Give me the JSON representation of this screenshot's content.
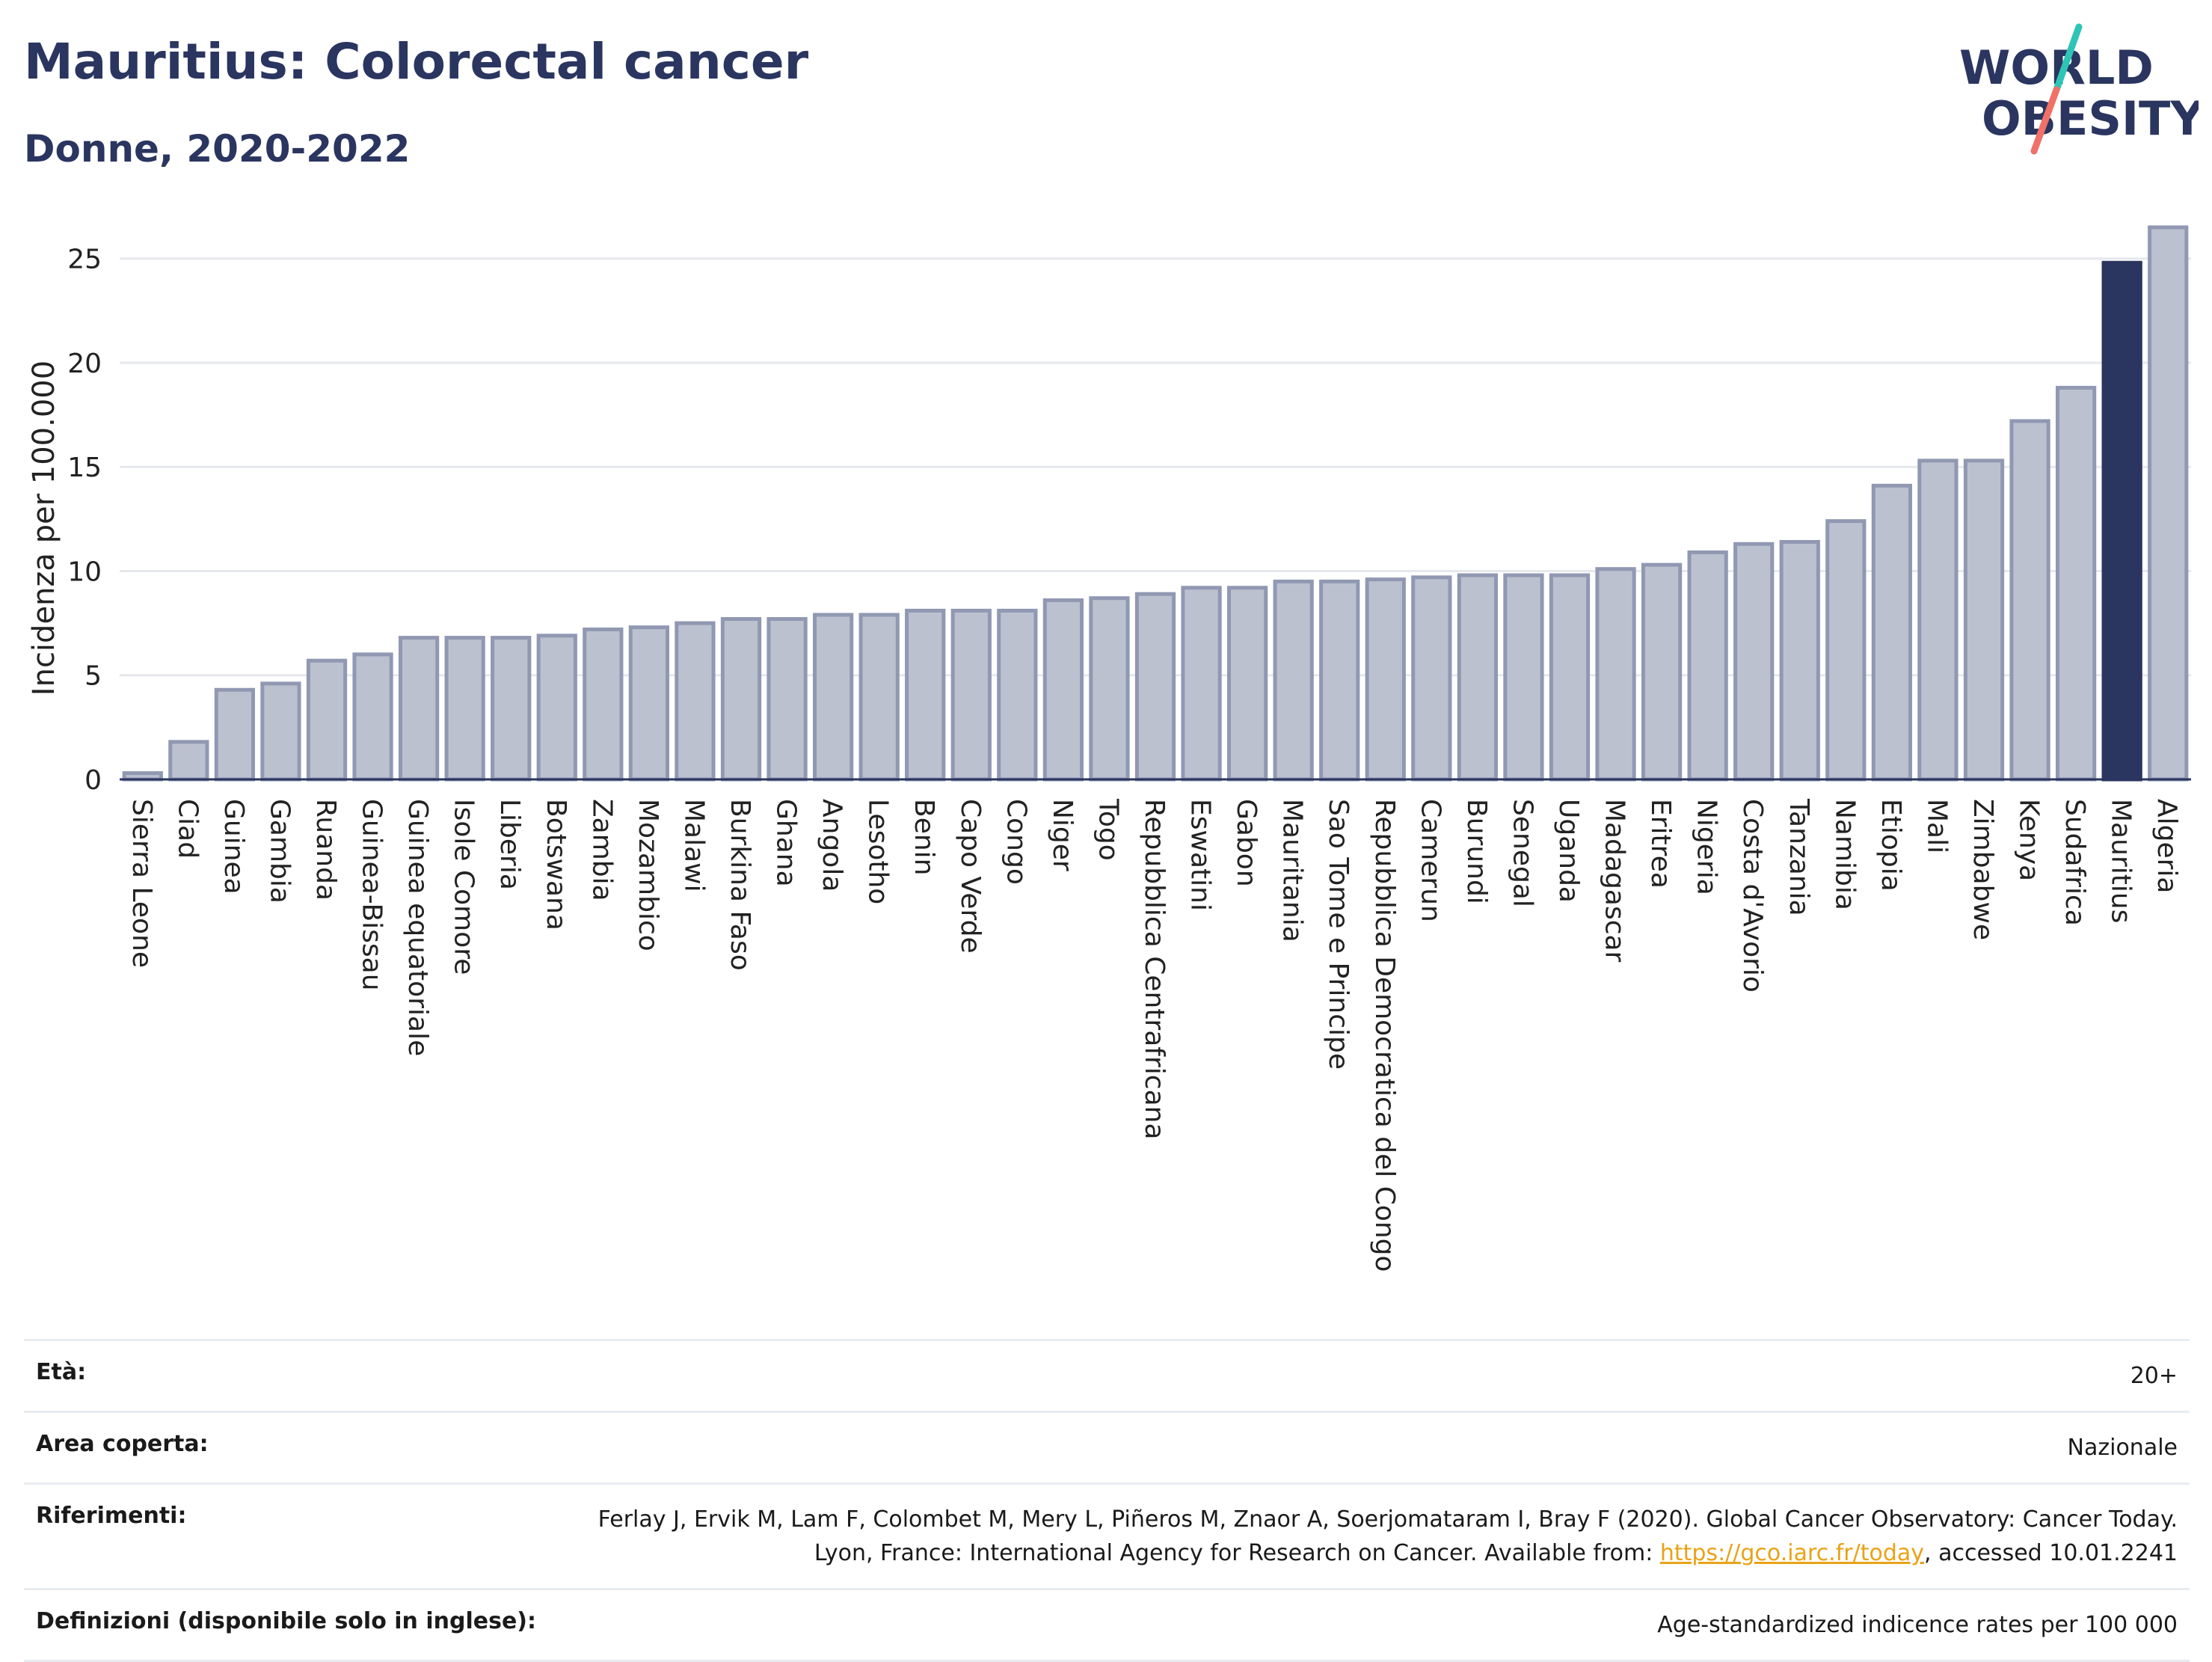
{
  "header": {
    "title": "Mauritius: Colorectal cancer",
    "subtitle": "Donne, 2020-2022",
    "logo_line1": "WORLD",
    "logo_line2": "OBESITY"
  },
  "colors": {
    "title": "#2a3560",
    "bar_default": "#bcc1d0",
    "bar_border": "#9098b2",
    "bar_highlight": "#2a3560",
    "grid": "#e6e8ee",
    "logo_teal": "#2ec4b6",
    "logo_coral": "#f07167"
  },
  "chart_data": {
    "type": "bar",
    "title": "",
    "xlabel": "",
    "ylabel": "Incidenza per 100.000",
    "ylim": [
      0,
      27
    ],
    "yticks": [
      0,
      5,
      10,
      15,
      20,
      25
    ],
    "grid": true,
    "highlight": "Mauritius",
    "categories": [
      "Sierra Leone",
      "Ciad",
      "Guinea",
      "Gambia",
      "Ruanda",
      "Guinea-Bissau",
      "Guinea equatoriale",
      "Isole Comore",
      "Liberia",
      "Botswana",
      "Zambia",
      "Mozambico",
      "Malawi",
      "Burkina Faso",
      "Ghana",
      "Angola",
      "Lesotho",
      "Benin",
      "Capo Verde",
      "Congo",
      "Niger",
      "Togo",
      "Repubblica Centrafricana",
      "Eswatini",
      "Gabon",
      "Mauritania",
      "Sao Tome e Principe",
      "Repubblica Democratica del Congo",
      "Camerun",
      "Burundi",
      "Senegal",
      "Uganda",
      "Madagascar",
      "Eritrea",
      "Nigeria",
      "Costa d'Avorio",
      "Tanzania",
      "Namibia",
      "Etiopia",
      "Mali",
      "Zimbabwe",
      "Kenya",
      "Sudafrica",
      "Mauritius",
      "Algeria"
    ],
    "values": [
      0.3,
      1.8,
      4.3,
      4.6,
      5.7,
      6.0,
      6.8,
      6.8,
      6.8,
      6.9,
      7.2,
      7.3,
      7.5,
      7.7,
      7.7,
      7.9,
      7.9,
      8.1,
      8.1,
      8.1,
      8.6,
      8.7,
      8.9,
      9.2,
      9.2,
      9.5,
      9.5,
      9.6,
      9.7,
      9.8,
      9.8,
      9.8,
      10.1,
      10.3,
      10.9,
      11.3,
      11.4,
      12.4,
      14.1,
      15.3,
      15.3,
      17.2,
      18.8,
      24.8,
      26.5
    ]
  },
  "meta": [
    {
      "key": "Età:",
      "value": "20+"
    },
    {
      "key": "Area coperta:",
      "value": "Nazionale"
    },
    {
      "key": "Riferimenti:",
      "value_before": "Ferlay J, Ervik M, Lam F, Colombet M, Mery L, Piñeros M, Znaor A, Soerjomataram I, Bray F (2020). Global Cancer Observatory: Cancer Today. Lyon, France: International Agency for Research on Cancer. Available from: ",
      "link": "https://gco.iarc.fr/today",
      "value_after": ", accessed 10.01.2241"
    },
    {
      "key": "Definizioni (disponibile solo in inglese):",
      "value": "Age-standardized indicence rates per 100 000"
    }
  ]
}
